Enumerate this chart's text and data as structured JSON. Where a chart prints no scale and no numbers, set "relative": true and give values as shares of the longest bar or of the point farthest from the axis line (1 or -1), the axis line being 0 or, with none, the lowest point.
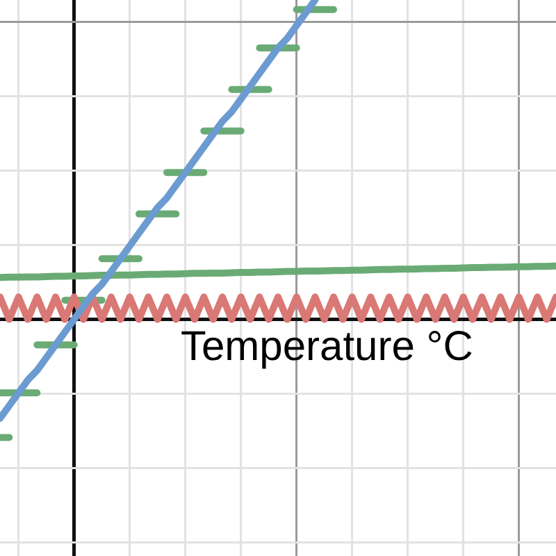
{
  "chart_data": {
    "type": "line",
    "relative": true,
    "xlabel": "Temperature °C",
    "grid": true,
    "legend": false,
    "tick_labels": false,
    "categories": [
      null,
      null,
      null,
      null,
      null,
      null,
      null,
      null,
      null,
      null,
      null,
      null,
      null,
      null,
      null,
      null,
      null,
      null,
      null,
      null,
      null,
      null,
      null,
      null,
      null,
      null,
      null,
      null,
      null,
      null,
      null,
      null,
      null,
      null,
      null,
      null,
      null,
      null,
      null,
      null,
      null,
      null,
      null,
      null,
      null,
      null,
      null,
      null,
      null,
      null,
      null,
      null,
      null,
      null,
      null,
      null,
      null,
      null,
      null,
      null,
      null
    ],
    "series": [
      {
        "color": "#6b9bd0",
        "values": [
          -0.31,
          -0.27,
          -0.23,
          -0.19,
          -0.16,
          -0.12,
          -0.08,
          -0.04,
          0,
          0.04,
          0.08,
          0.11,
          0.15,
          0.19,
          0.23,
          0.27,
          0.31,
          0.35,
          0.38,
          0.42,
          0.46,
          0.5,
          0.54,
          0.58,
          0.62,
          0.65,
          0.69,
          0.73,
          0.77,
          0.81,
          0.85,
          0.88,
          0.92,
          0.96,
          1,
          null,
          null,
          null,
          null,
          null,
          null,
          null,
          null,
          null,
          null,
          null,
          null,
          null,
          null,
          null,
          null,
          null,
          null,
          null,
          null,
          null,
          null,
          null,
          null,
          null,
          null
        ]
      },
      {
        "color": "#6aab75",
        "values": [
          0.131,
          0.132,
          0.132,
          0.133,
          0.133,
          0.134,
          0.135,
          0.135,
          0.136,
          0.136,
          0.137,
          0.138,
          0.138,
          0.139,
          0.139,
          0.14,
          0.141,
          0.141,
          0.142,
          0.142,
          0.143,
          0.144,
          0.144,
          0.145,
          0.145,
          0.146,
          0.147,
          0.147,
          0.148,
          0.148,
          0.149,
          0.15,
          0.15,
          0.151,
          0.151,
          0.152,
          0.153,
          0.153,
          0.154,
          0.154,
          0.155,
          0.156,
          0.156,
          0.157,
          0.157,
          0.158,
          0.159,
          0.159,
          0.16,
          0.16,
          0.161,
          0.162,
          0.162,
          0.163,
          0.163,
          0.164,
          0.165,
          0.165,
          0.166,
          0.166,
          0.167
        ]
      },
      {
        "color": "#d97874",
        "values": [
          0.07,
          0,
          0.07,
          0,
          0.07,
          0,
          0.07,
          0,
          0.07,
          0,
          0.07,
          0,
          0.07,
          0,
          0.07,
          0,
          0.07,
          0,
          0.07,
          0,
          0.07,
          0,
          0.07,
          0,
          0.07,
          0,
          0.07,
          0,
          0.07,
          0,
          0.07,
          0,
          0.07,
          0,
          0.07,
          0,
          0.07,
          0,
          0.07,
          0,
          0.07,
          0,
          0.07,
          0,
          0.07,
          0,
          0.07,
          0,
          0.07,
          0,
          0.07,
          0,
          0.07,
          0,
          0.07,
          0,
          0.07,
          0,
          0.07,
          0,
          0.07
        ]
      },
      {
        "color": "#6aab75",
        "values": [
          -0.37,
          -0.37,
          null,
          null,
          -0.08,
          -0.08,
          -0.08,
          -0.08,
          -0.08,
          null,
          null,
          0.19,
          0.19,
          0.19,
          0.19,
          0.19,
          null,
          null,
          0.46,
          0.46,
          0.46,
          0.46,
          0.46,
          null,
          null,
          0.72,
          0.72,
          0.72,
          0.72,
          0.72,
          null,
          null,
          0.97,
          0.97,
          0.97,
          0.97,
          0.97,
          null,
          null,
          null,
          null,
          null,
          null,
          null,
          null,
          null,
          null,
          null,
          null,
          null,
          null,
          null,
          null,
          null,
          null,
          null,
          null,
          null,
          null,
          null,
          null
        ]
      },
      {
        "color": "#6aab75",
        "values": [
          -0.23,
          -0.23,
          -0.23,
          -0.23,
          -0.23,
          null,
          null,
          0.06,
          0.06,
          0.06,
          0.06,
          0.06,
          null,
          null,
          null,
          0.33,
          0.33,
          0.33,
          0.33,
          0.33,
          null,
          null,
          0.59,
          0.59,
          0.59,
          0.59,
          0.59,
          null,
          0.85,
          0.85,
          0.85,
          0.85,
          0.85,
          null,
          null,
          null,
          null,
          null,
          null,
          null,
          null,
          null,
          null,
          null,
          null,
          null,
          null,
          null,
          null,
          null,
          null,
          null,
          null,
          null,
          null,
          null,
          null,
          null,
          null,
          null,
          null
        ]
      }
    ]
  }
}
